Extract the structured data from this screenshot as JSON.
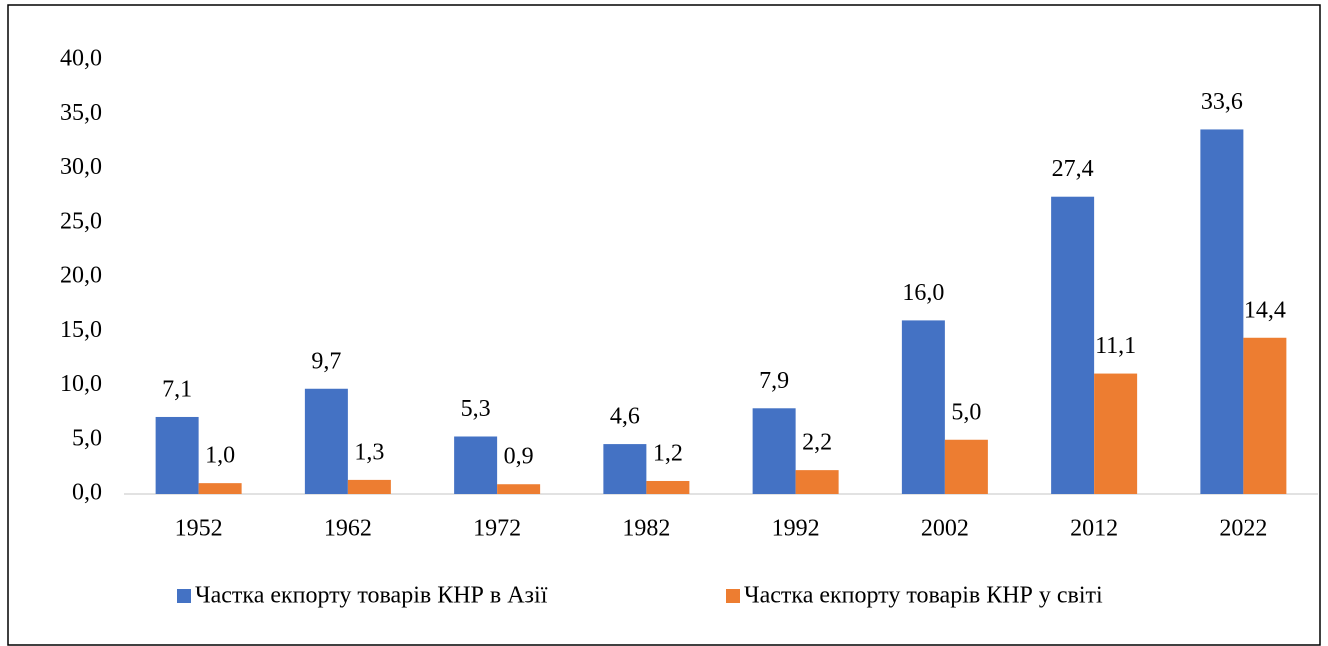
{
  "chart_data": {
    "type": "bar",
    "categories": [
      "1952",
      "1962",
      "1972",
      "1982",
      "1992",
      "2002",
      "2012",
      "2022"
    ],
    "series": [
      {
        "name": "Частка екпорту товарів КНР в Азії",
        "color": "#4472c4",
        "values": [
          7.1,
          9.7,
          5.3,
          4.6,
          7.9,
          16.0,
          27.4,
          33.6
        ],
        "value_labels": [
          "7,1",
          "9,7",
          "5,3",
          "4,6",
          "7,9",
          "16,0",
          "27,4",
          "33,6"
        ]
      },
      {
        "name": "Частка екпорту товарів КНР у світі",
        "color": "#ed7d31",
        "values": [
          1.0,
          1.3,
          0.9,
          1.2,
          2.2,
          5.0,
          11.1,
          14.4
        ],
        "value_labels": [
          "1,0",
          "1,3",
          "0,9",
          "1,2",
          "2,2",
          "5,0",
          "11,1",
          "14,4"
        ]
      }
    ],
    "ylim": [
      0,
      40
    ],
    "yticks": [
      {
        "value": 0,
        "label": "0,0"
      },
      {
        "value": 5,
        "label": "5,0"
      },
      {
        "value": 10,
        "label": "10,0"
      },
      {
        "value": 15,
        "label": "15,0"
      },
      {
        "value": 20,
        "label": "20,0"
      },
      {
        "value": 25,
        "label": "25,0"
      },
      {
        "value": 30,
        "label": "30,0"
      },
      {
        "value": 35,
        "label": "35,0"
      },
      {
        "value": 40,
        "label": "40,0"
      }
    ],
    "grid": false
  }
}
